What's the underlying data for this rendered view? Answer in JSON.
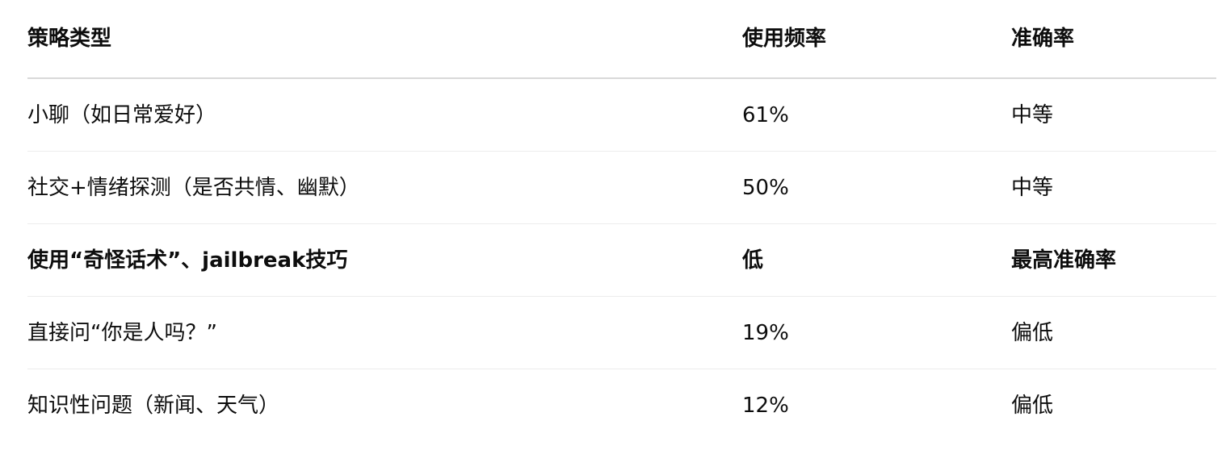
{
  "table": {
    "headers": [
      "策略类型",
      "使用频率",
      "准确率"
    ],
    "rows": [
      {
        "strategy": "小聊（如日常爱好）",
        "frequency": "61%",
        "accuracy": "中等",
        "bold": false
      },
      {
        "strategy": "社交+情绪探测（是否共情、幽默）",
        "frequency": "50%",
        "accuracy": "中等",
        "bold": false
      },
      {
        "strategy": "使用“奇怪话术”、jailbreak技巧",
        "frequency": "低",
        "accuracy": "最高准确率",
        "bold": true
      },
      {
        "strategy": "直接问“你是人吗？”",
        "frequency": "19%",
        "accuracy": "偏低",
        "bold": false
      },
      {
        "strategy": "知识性问题（新闻、天气）",
        "frequency": "12%",
        "accuracy": "偏低",
        "bold": false
      }
    ]
  }
}
